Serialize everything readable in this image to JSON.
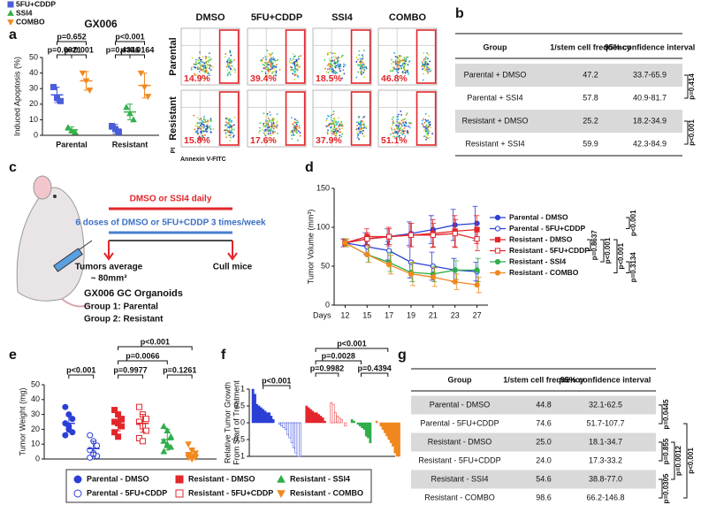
{
  "panel_labels": [
    "a",
    "b",
    "c",
    "d",
    "e",
    "f",
    "g"
  ],
  "chart_data": [
    {
      "type": "dotplot",
      "title": "GX006",
      "ylabel": "Induced Apoptosis (%)",
      "categories": [
        "Parental",
        "Resistant"
      ],
      "ylim": [
        0,
        50
      ],
      "yticks": [
        0,
        10,
        20,
        30,
        40,
        50
      ],
      "series": [
        {
          "name": "5FU+CDDP",
          "color": "#4a5ed8",
          "marker": "square",
          "values": [
            26,
            4
          ],
          "errors": [
            5,
            3
          ],
          "points": [
            [
              31,
              24,
              22
            ],
            [
              6,
              4,
              2
            ]
          ]
        },
        {
          "name": "SSI4",
          "color": "#33b04a",
          "marker": "triangle",
          "values": [
            3.5,
            15
          ],
          "errors": [
            2,
            5
          ],
          "points": [
            [
              5,
              3,
              2
            ],
            [
              18,
              14,
              10
            ]
          ]
        },
        {
          "name": "COMBO",
          "color": "#f08a24",
          "marker": "triangle-down",
          "values": [
            35,
            32
          ],
          "errors": [
            6,
            8
          ],
          "points": [
            [
              40,
              35,
              29
            ],
            [
              40,
              31,
              25
            ]
          ]
        }
      ],
      "annotations": [
        "p=0.652",
        "p=0.0021",
        "p<0.001",
        "p<0.001",
        "p=0.4346",
        "p=0.0164"
      ]
    },
    {
      "type": "line",
      "ylabel": "Tumor Volume (mm³)",
      "xlabel": "Days",
      "categories": [
        12,
        15,
        17,
        19,
        21,
        23,
        27
      ],
      "ylim": [
        0,
        150
      ],
      "yticks": [
        0,
        50,
        100,
        150
      ],
      "series": [
        {
          "name": "Parental - DMSO",
          "color": "#2b3fd6",
          "marker": "circle",
          "values": [
            80,
            85,
            88,
            92,
            97,
            103,
            105
          ],
          "errors": [
            5,
            8,
            10,
            15,
            18,
            20,
            22
          ]
        },
        {
          "name": "Parental - 5FU+CDDP",
          "color": "#2b3fd6",
          "marker": "circle-open",
          "values": [
            80,
            75,
            70,
            55,
            50,
            45,
            43
          ],
          "errors": [
            5,
            10,
            12,
            20,
            18,
            15,
            12
          ]
        },
        {
          "name": "Resistant - DMSO",
          "color": "#e3262b",
          "marker": "square",
          "values": [
            80,
            88,
            88,
            90,
            92,
            95,
            97
          ],
          "errors": [
            5,
            10,
            12,
            15,
            18,
            20,
            18
          ]
        },
        {
          "name": "Resistant - 5FU+CDDP",
          "color": "#e3262b",
          "marker": "square-open",
          "values": [
            80,
            85,
            88,
            90,
            90,
            92,
            85
          ],
          "errors": [
            5,
            8,
            10,
            15,
            15,
            18,
            15
          ]
        },
        {
          "name": "Resistant - SSI4",
          "color": "#2fae4a",
          "marker": "circle",
          "values": [
            80,
            65,
            55,
            42,
            40,
            45,
            45
          ],
          "errors": [
            5,
            10,
            12,
            12,
            10,
            12,
            15
          ]
        },
        {
          "name": "Resistant - COMBO",
          "color": "#f0881f",
          "marker": "circle",
          "values": [
            80,
            65,
            52,
            40,
            36,
            30,
            26
          ],
          "errors": [
            5,
            10,
            12,
            15,
            12,
            10,
            10
          ]
        }
      ],
      "annotations": [
        "p<0.001",
        "p=0.8637",
        "p<0.001",
        "p<0.001",
        "p=0.3134"
      ]
    },
    {
      "type": "dotplot",
      "ylabel": "Tumor Weight (mg)",
      "categories": [
        null
      ],
      "ylim": [
        0,
        50
      ],
      "yticks": [
        0,
        10,
        20,
        30,
        40,
        50
      ],
      "series": [
        {
          "name": "Parental - DMSO",
          "color": "#2b3fd6",
          "marker": "circle",
          "values": [
            24
          ],
          "errors": [
            6
          ],
          "points": [
            [
              35,
              30,
              27,
              24,
              20,
              18,
              16,
              22
            ]
          ]
        },
        {
          "name": "Parental - 5FU+CDDP",
          "color": "#2b3fd6",
          "marker": "circle-open",
          "values": [
            7
          ],
          "errors": [
            5
          ],
          "points": [
            [
              16,
              12,
              9,
              6,
              4,
              2,
              1,
              3
            ]
          ]
        },
        {
          "name": "Resistant - DMSO",
          "color": "#e3262b",
          "marker": "square",
          "values": [
            25
          ],
          "errors": [
            6
          ],
          "points": [
            [
              33,
              30,
              27,
              25,
              24,
              22,
              18,
              15
            ]
          ]
        },
        {
          "name": "Resistant - 5FU+CDDP",
          "color": "#e3262b",
          "marker": "square-open",
          "values": [
            24
          ],
          "errors": [
            6
          ],
          "points": [
            [
              35,
              30,
              27,
              25,
              22,
              19,
              14,
              12
            ]
          ]
        },
        {
          "name": "Resistant - SSI4",
          "color": "#2fae4a",
          "marker": "triangle",
          "values": [
            13
          ],
          "errors": [
            7
          ],
          "points": [
            [
              22,
              19,
              15,
              12,
              10,
              8,
              5,
              9
            ]
          ]
        },
        {
          "name": "Resistant - COMBO",
          "color": "#f0881f",
          "marker": "triangle-down",
          "values": [
            3
          ],
          "errors": [
            3
          ],
          "points": [
            [
              10,
              6,
              4,
              3,
              2,
              1,
              1,
              0
            ]
          ]
        }
      ],
      "annotations": [
        "p<0.001",
        "p=0.9977",
        "p=0.0066",
        "p=0.1261",
        "p<0.001"
      ]
    },
    {
      "type": "waterfall",
      "ylabel": [
        "Relative Tumor Growth",
        "From Start of Treatment"
      ],
      "ylim": [
        -1,
        1
      ],
      "yticks": [
        -1,
        -0.5,
        0,
        0.5,
        1
      ],
      "groups": [
        {
          "color": "#2b3fd6",
          "style": "solid",
          "values": [
            1,
            0.85,
            0.55,
            0.5,
            0.45,
            0.4,
            0.35,
            0.3,
            0.3,
            0.2,
            0.1
          ]
        },
        {
          "color": "#2b3fd6",
          "style": "open",
          "values": [
            -0.05,
            -0.1,
            -0.15,
            -0.2,
            -0.35,
            -0.45,
            -0.6,
            -0.75,
            -0.9,
            -1,
            -1
          ]
        },
        {
          "color": "#e3262b",
          "style": "solid",
          "values": [
            0.5,
            0.45,
            0.4,
            0.35,
            0.3,
            0.3,
            0.25,
            0.2,
            0.15,
            0.05
          ]
        },
        {
          "color": "#e3262b",
          "style": "open",
          "values": [
            0.6,
            0.55,
            0.3,
            0.2,
            0.15,
            0.1,
            0,
            -0.1
          ]
        },
        {
          "color": "#2fae4a",
          "style": "solid",
          "values": [
            0.1,
            0.05,
            0,
            -0.05,
            -0.1,
            -0.15,
            -0.2,
            -0.4,
            -0.45,
            -0.6
          ]
        },
        {
          "color": "#f0881f",
          "style": "solid",
          "values": [
            0.05,
            0,
            -0.1,
            -0.2,
            -0.3,
            -0.4,
            -0.5,
            -0.6,
            -0.7,
            -0.9,
            -1,
            -1
          ]
        }
      ],
      "annotations": [
        "p<0.001",
        "p=0.9982",
        "p=0.0028",
        "p=0.4394",
        "p<0.001"
      ]
    }
  ],
  "flow": {
    "columns": [
      "DMSO",
      "5FU+CDDP",
      "SSI4",
      "COMBO"
    ],
    "rows": [
      "Parental",
      "Resistant"
    ],
    "percentages": [
      [
        "14.9%",
        "39.4%",
        "18.5%",
        "46.8%"
      ],
      [
        "15.8%",
        "17.6%",
        "37.9%",
        "51.1%"
      ]
    ],
    "x_label": "Annexin V-FITC",
    "y_label": "PI"
  },
  "table_b": {
    "headers": [
      "Group",
      "1/stem cell frequency",
      "95% confidence interval"
    ],
    "rows": [
      [
        "Parental + DMSO",
        "47.2",
        "33.7-65.9"
      ],
      [
        "Parental + SSI4",
        "57.8",
        "40.9-81.7"
      ],
      [
        "Resistant + DMSO",
        "25.2",
        "18.2-34.9"
      ],
      [
        "Resistant + SSI4",
        "59.9",
        "42.3-84.9"
      ]
    ],
    "p_values": [
      "p=0.414",
      "p<0.001"
    ]
  },
  "schematic": {
    "red_bar_label": "DMSO or SSI4 daily",
    "blue_bar_label": "6 doses of DMSO or 5FU+CDDP 3 times/week",
    "start_label": [
      "Tumors average",
      "~ 80mm³"
    ],
    "end_label": "Cull mice",
    "organoid_title": "GX006 GC Organoids",
    "groups": [
      "Group 1: Parental",
      "Group 2: Resistant"
    ]
  },
  "table_g": {
    "headers": [
      "Group",
      "1/stem cell frequency",
      "95% confidence interval"
    ],
    "rows": [
      [
        "Parental - DMSO",
        "44.8",
        "32.1-62.5"
      ],
      [
        "Parental - 5FU+CDDP",
        "74.6",
        "51.7-107.7"
      ],
      [
        "Resistant - DMSO",
        "25.0",
        "18.1-34.7"
      ],
      [
        "Resistant - 5FU+CDDP",
        "24.0",
        "17.3-33.2"
      ],
      [
        "Resistant - SSI4",
        "54.6",
        "38.8-77.0"
      ],
      [
        "Resistant - COMBO",
        "98.6",
        "66.2-146.8"
      ]
    ],
    "p_values": [
      "p=0.0445",
      "p=0.855",
      "p=0.0012",
      "p<0.001",
      "p=0.0305"
    ]
  }
}
